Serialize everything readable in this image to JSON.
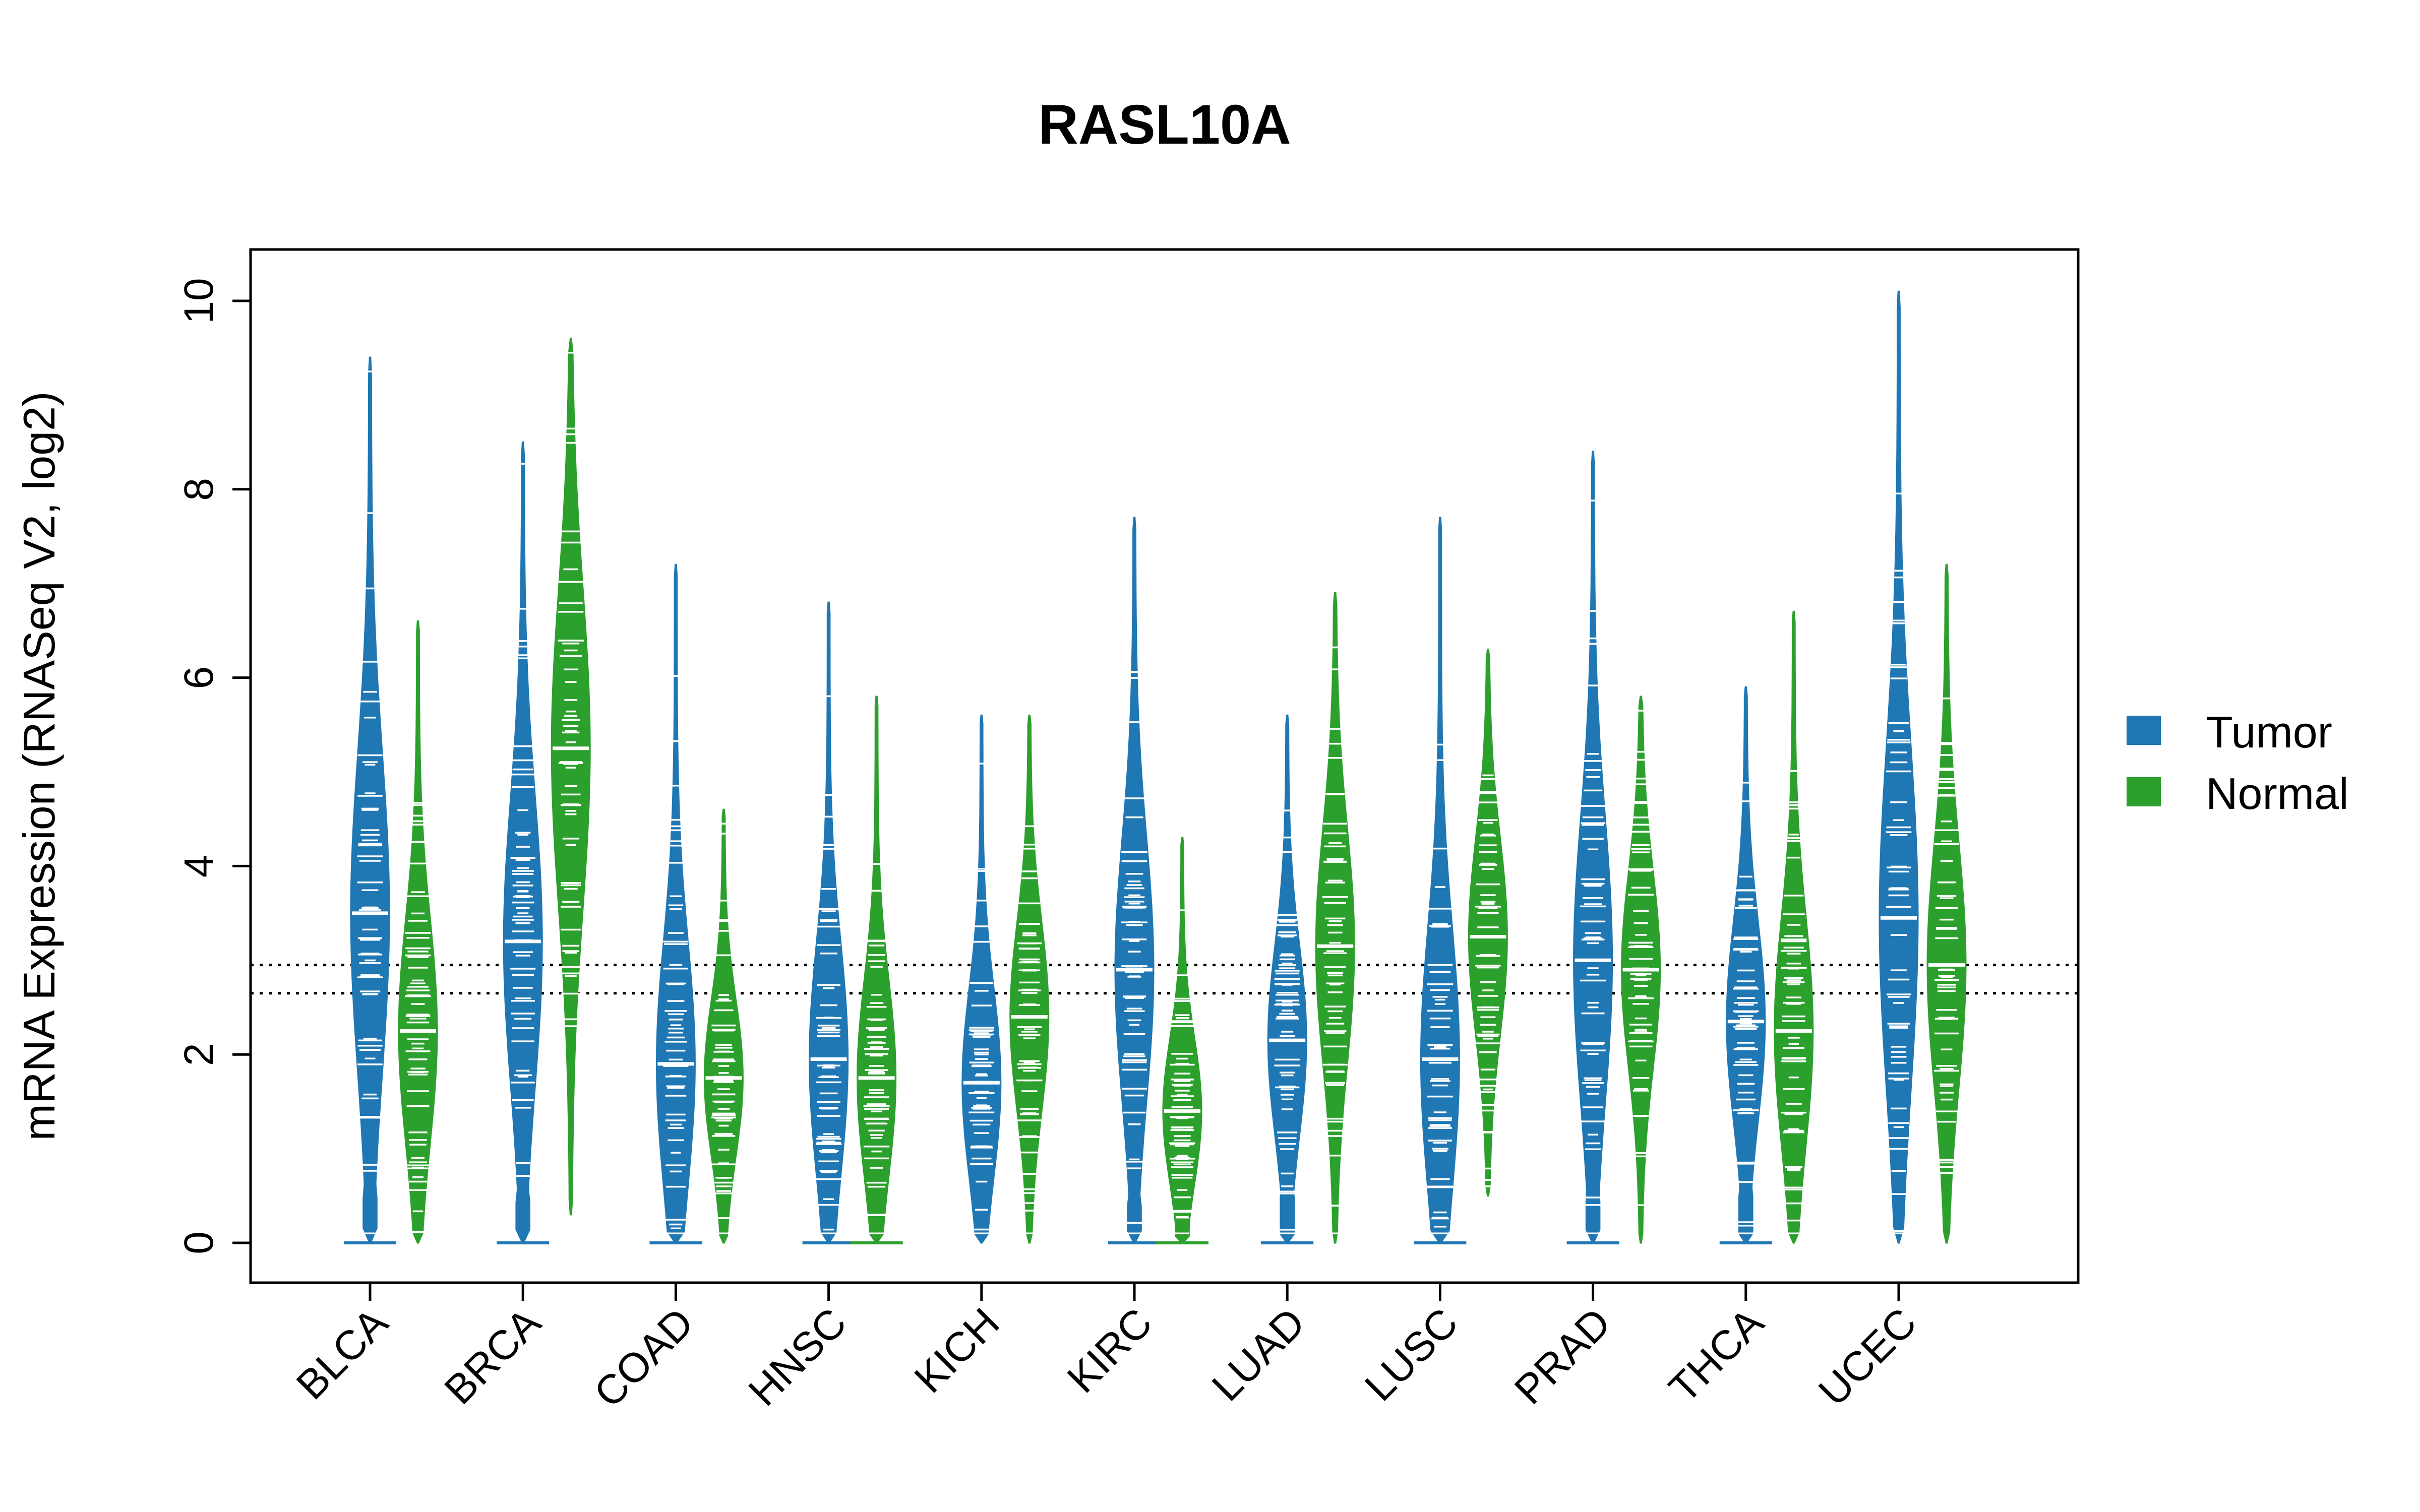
{
  "chart_data": {
    "type": "violin",
    "title": "RASL10A",
    "xlabel": "",
    "ylabel": "mRNA Expression (RNASeq V2, log2)",
    "ylim": [
      -0.4,
      10.5
    ],
    "yticks": [
      0,
      2,
      4,
      6,
      8,
      10
    ],
    "categories": [
      "BLCA",
      "BRCA",
      "COAD",
      "HNSC",
      "KICH",
      "KIRC",
      "LUAD",
      "LUSC",
      "PRAD",
      "THCA",
      "UCEC"
    ],
    "series": [
      {
        "name": "Tumor",
        "color": "#1f77b4",
        "medians": [
          3.5,
          3.2,
          1.9,
          1.95,
          1.7,
          2.9,
          2.15,
          1.95,
          3.0,
          2.35,
          3.45
        ],
        "mins": [
          0,
          0,
          0,
          0,
          0,
          0,
          0,
          0,
          0,
          0,
          0
        ],
        "maxs": [
          9.4,
          8.5,
          7.2,
          6.8,
          5.6,
          7.7,
          5.6,
          7.7,
          8.4,
          5.9,
          10.1
        ],
        "has_zero_cluster": [
          true,
          true,
          true,
          true,
          false,
          true,
          true,
          true,
          true,
          true,
          false
        ]
      },
      {
        "name": "Normal",
        "color": "#2ca02c",
        "medians": [
          2.25,
          5.25,
          1.75,
          1.75,
          2.4,
          1.4,
          3.15,
          3.25,
          2.9,
          2.25,
          2.95
        ],
        "mins": [
          0,
          0.3,
          0,
          0,
          0,
          0,
          0,
          0.5,
          0,
          0,
          0
        ],
        "maxs": [
          6.6,
          9.6,
          4.6,
          5.8,
          5.6,
          4.3,
          6.9,
          6.3,
          5.8,
          6.7,
          7.2
        ],
        "has_zero_cluster": [
          false,
          false,
          false,
          true,
          false,
          true,
          false,
          false,
          false,
          false,
          false
        ]
      }
    ],
    "reference_lines": [
      2.65,
      2.95
    ],
    "legend": {
      "position": "right",
      "entries": [
        "Tumor",
        "Normal"
      ]
    }
  }
}
